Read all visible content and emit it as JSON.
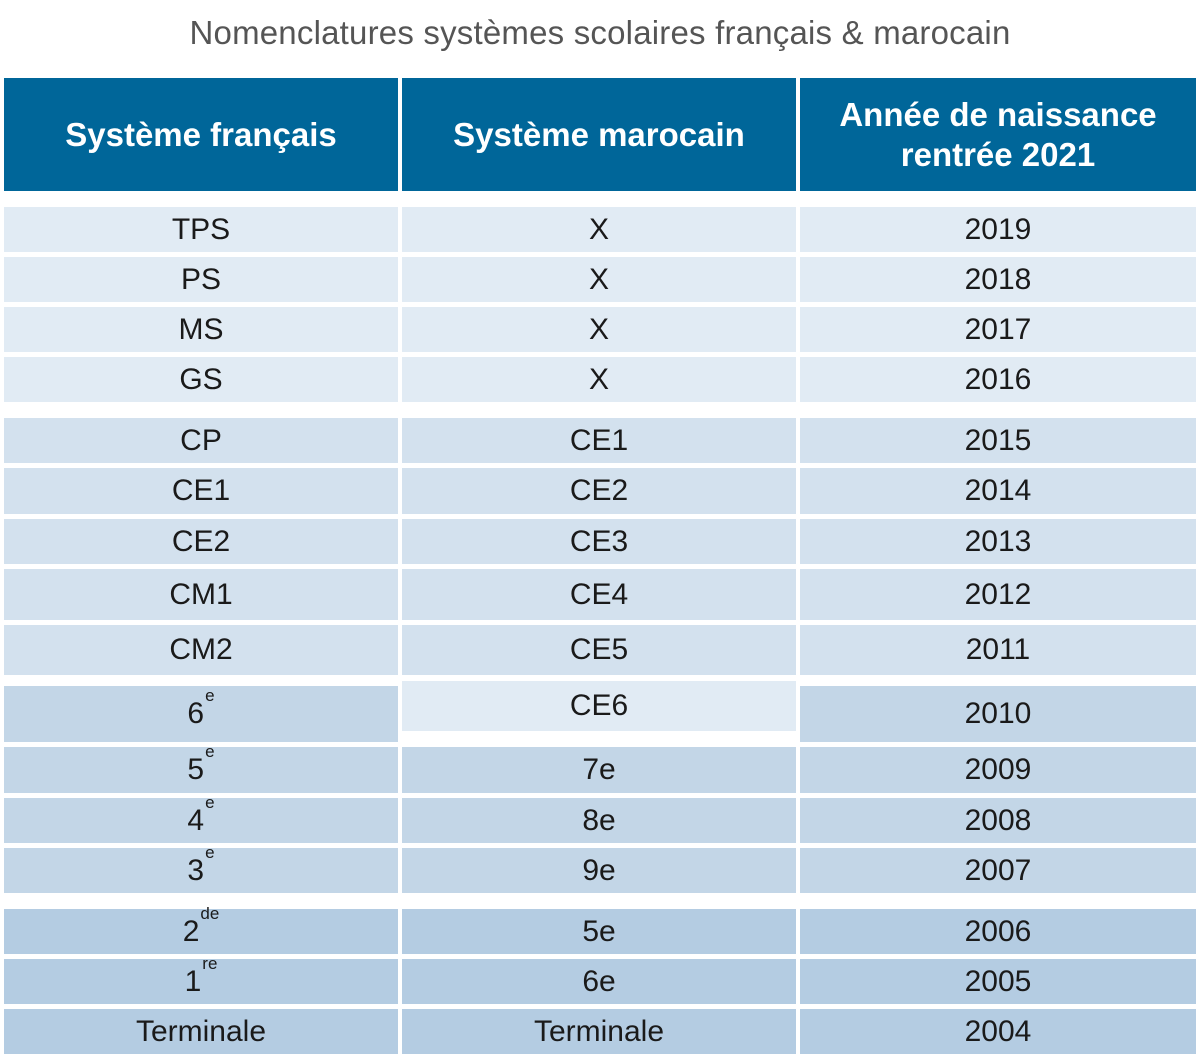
{
  "title": "Nomenclatures systèmes scolaires français & marocain",
  "headers": {
    "francais": "Système français",
    "marocain": "Système marocain",
    "annee_line1": "Année de naissance",
    "annee_line2": "rentrée 2021"
  },
  "colors": {
    "header": "#006699",
    "group_maternelle": "#e1ebf4",
    "group_elementaire": "#d3e1ee",
    "group_college": "#c3d6e7",
    "group_lycee": "#b4cce2"
  },
  "rows": [
    {
      "fr": "TPS",
      "fr_sup": "",
      "ma": "X",
      "year": "2019"
    },
    {
      "fr": "PS",
      "fr_sup": "",
      "ma": "X",
      "year": "2018"
    },
    {
      "fr": "MS",
      "fr_sup": "",
      "ma": "X",
      "year": "2017"
    },
    {
      "fr": "GS",
      "fr_sup": "",
      "ma": "X",
      "year": "2016"
    },
    {
      "fr": "CP",
      "fr_sup": "",
      "ma": "CE1",
      "year": "2015"
    },
    {
      "fr": "CE1",
      "fr_sup": "",
      "ma": "CE2",
      "year": "2014"
    },
    {
      "fr": "CE2",
      "fr_sup": "",
      "ma": "CE3",
      "year": "2013"
    },
    {
      "fr": "CM1",
      "fr_sup": "",
      "ma": "CE4",
      "year": "2012"
    },
    {
      "fr": "CM2",
      "fr_sup": "",
      "ma": "CE5",
      "year": "2011"
    },
    {
      "fr": "6",
      "fr_sup": "e",
      "ma": "CE6",
      "year": "2010"
    },
    {
      "fr": "5",
      "fr_sup": "e",
      "ma": "7e",
      "year": "2009"
    },
    {
      "fr": "4",
      "fr_sup": "e",
      "ma": "8e",
      "year": "2008"
    },
    {
      "fr": "3",
      "fr_sup": "e",
      "ma": "9e",
      "year": "2007"
    },
    {
      "fr": "2",
      "fr_sup": "de",
      "ma": "5e",
      "year": "2006"
    },
    {
      "fr": "1",
      "fr_sup": "re",
      "ma": "6e",
      "year": "2005"
    },
    {
      "fr": "Terminale",
      "fr_sup": "",
      "ma": "Terminale",
      "year": "2004"
    }
  ]
}
